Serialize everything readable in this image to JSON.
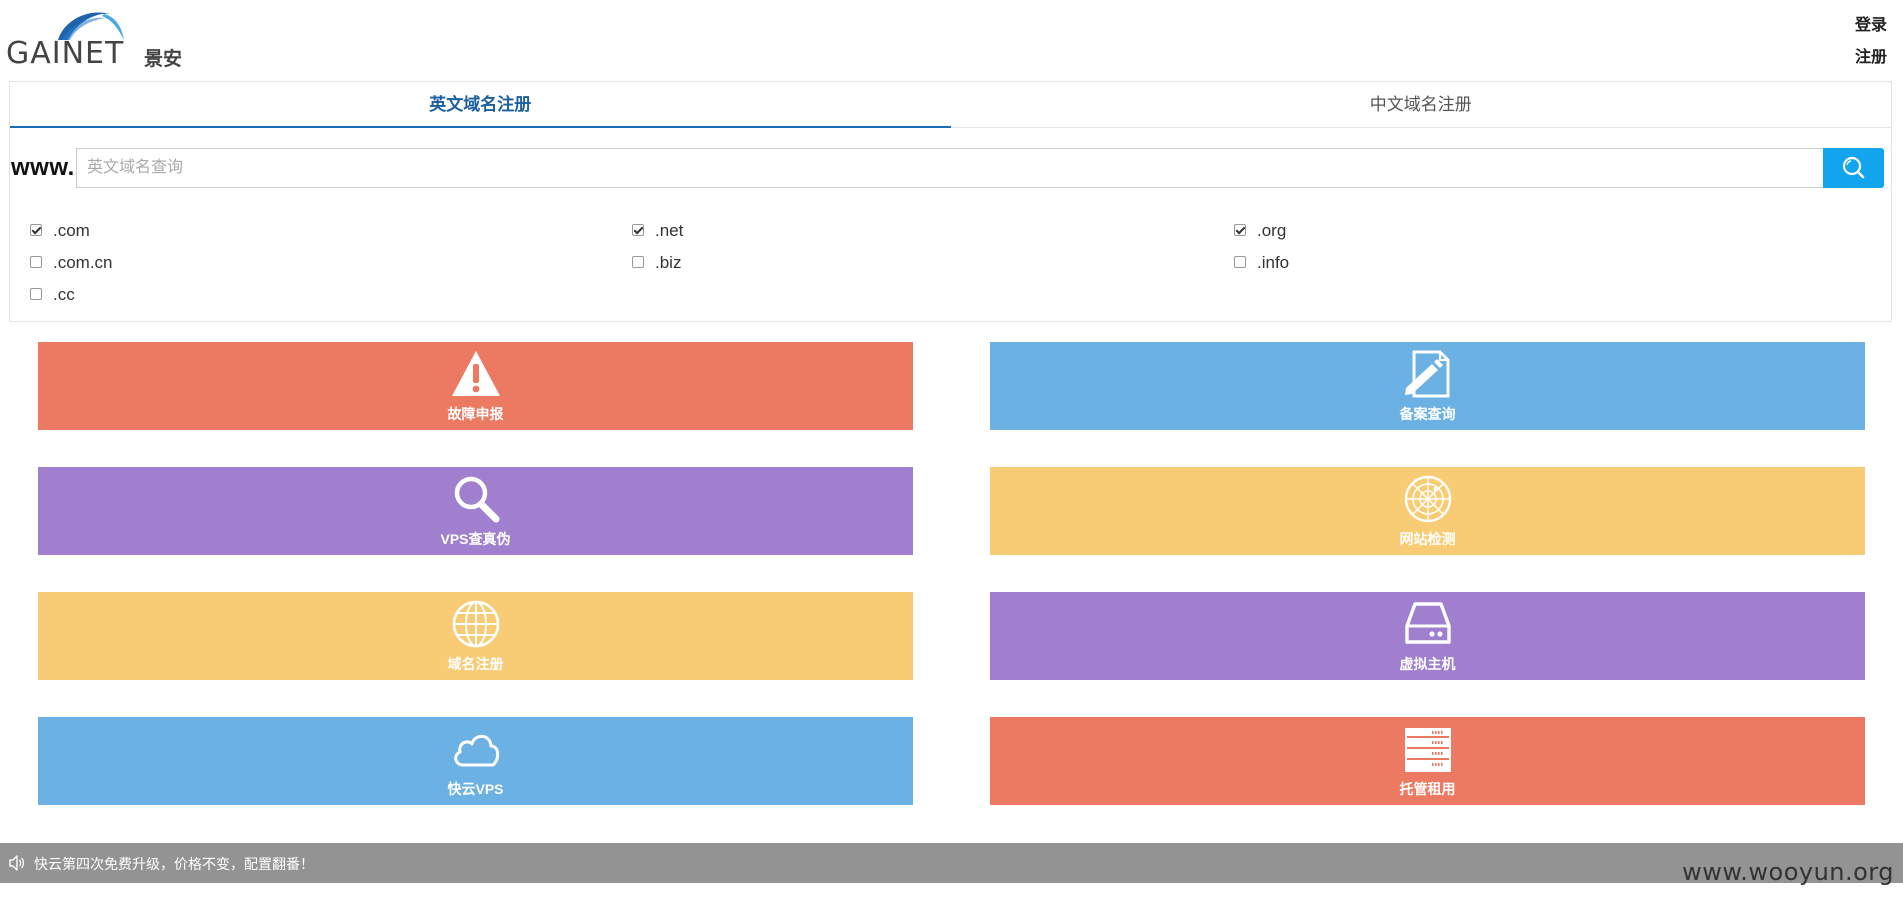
{
  "header": {
    "logo_text": "GAINET",
    "logo_cn": "景安",
    "login_label": "登录",
    "register_label": "注册"
  },
  "domain_search": {
    "tabs": [
      {
        "label": "英文域名注册",
        "active": true
      },
      {
        "label": "中文域名注册",
        "active": false
      }
    ],
    "prefix": "www.",
    "placeholder": "英文域名查询",
    "value": "",
    "tlds": [
      {
        "label": ".com",
        "checked": true
      },
      {
        "label": ".net",
        "checked": true
      },
      {
        "label": ".org",
        "checked": true
      },
      {
        "label": ".com.cn",
        "checked": false
      },
      {
        "label": ".biz",
        "checked": false
      },
      {
        "label": ".info",
        "checked": false
      },
      {
        "label": ".cc",
        "checked": false
      }
    ]
  },
  "services": [
    {
      "label": "故障申报",
      "icon": "warning-icon",
      "color": "#ec7962"
    },
    {
      "label": "备案查询",
      "icon": "document-pen-icon",
      "color": "#6bb1e3"
    },
    {
      "label": "VPS查真伪",
      "icon": "magnifier-icon",
      "color": "#a07fcf"
    },
    {
      "label": "网站检测",
      "icon": "radar-icon",
      "color": "#f8cc74"
    },
    {
      "label": "域名注册",
      "icon": "globe-icon",
      "color": "#f8cc74"
    },
    {
      "label": "虚拟主机",
      "icon": "hard-drive-icon",
      "color": "#a07fcf"
    },
    {
      "label": "快云VPS",
      "icon": "cloud-icon",
      "color": "#6bb1e3"
    },
    {
      "label": "托管租用",
      "icon": "server-rack-icon",
      "color": "#ec7962"
    }
  ],
  "notice": {
    "icon": "speaker-icon",
    "message": "快云第四次免费升级，价格不变，配置翻番！"
  },
  "watermark": "www.wooyun.org"
}
